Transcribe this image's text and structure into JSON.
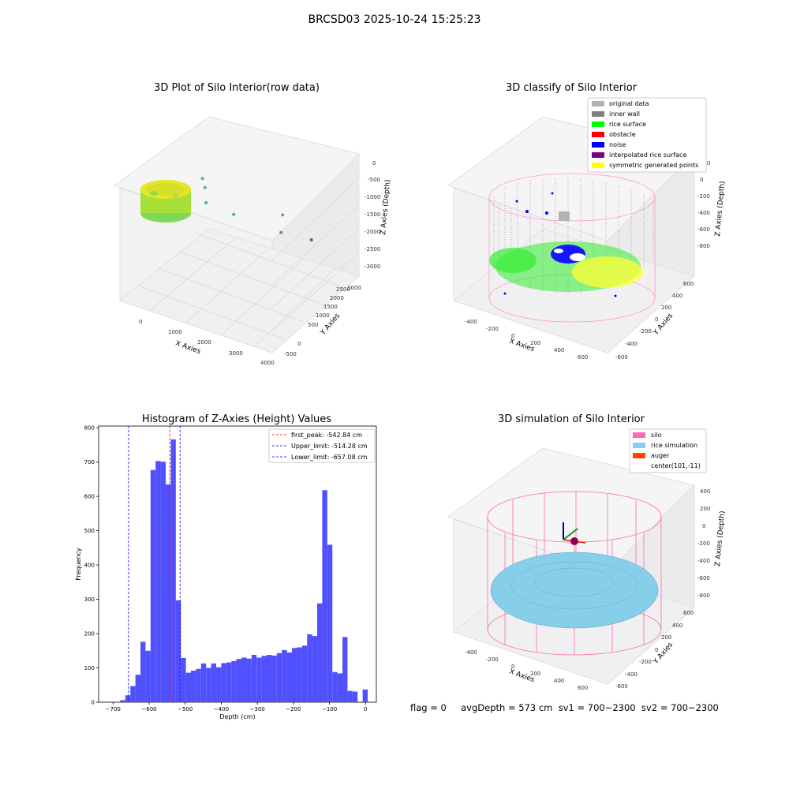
{
  "suptitle": "BRCSD03 2025-10-24 15:25:23",
  "footer": "flag = 0     avgDepth = 573 cm  sv1 = 700~2300  sv2 = 700~2300",
  "colors": {
    "original": "#b3b3b3",
    "inner_wall": "#808080",
    "rice_surface": "#00ff00",
    "obstacle": "#ff0000",
    "noise": "#0000ff",
    "interpolated": "#800080",
    "symmetric": "#ffff00",
    "silo": "#ff69b4",
    "rice_sim": "#87ceeb",
    "auger": "#ff4500",
    "hist_bar": "#5050ff"
  },
  "chart_data": [
    {
      "type": "scatter3d",
      "title": "3D Plot of Silo Interior(row data)",
      "xlabel": "X Axies",
      "ylabel": "Y Axies",
      "zlabel": "Z Axies (Depth)",
      "xticks": [
        "0",
        "1000",
        "2000",
        "3000",
        "4000"
      ],
      "yticks": [
        "-500",
        "0",
        "500",
        "1000",
        "1500",
        "2000",
        "2500",
        "3000"
      ],
      "zticks": [
        "0",
        "-500",
        "-1000",
        "-1500",
        "-2000",
        "-2500",
        "-3000"
      ],
      "outliers": [
        {
          "x": 400,
          "y": 1900,
          "z": -1900,
          "color": "#3cb89a"
        },
        {
          "x": 600,
          "y": 1700,
          "z": -2100,
          "color": "#3cb89a"
        },
        {
          "x": 900,
          "y": 1300,
          "z": -2300,
          "color": "#3cb89a"
        },
        {
          "x": 1600,
          "y": 1300,
          "z": -2600,
          "color": "#3cb89a"
        },
        {
          "x": 2500,
          "y": 1800,
          "z": -2700,
          "color": "#7b8fc0"
        },
        {
          "x": 2800,
          "y": 1300,
          "z": -2900,
          "color": "#6f7fb5"
        },
        {
          "x": 3500,
          "y": 1400,
          "z": -3000,
          "color": "#4e5fa3"
        }
      ]
    },
    {
      "type": "scatter3d",
      "title": "3D classify of Silo Interior",
      "xlabel": "X Axies",
      "ylabel": "Y Axies",
      "zlabel": "Z Axies (Depth)",
      "xticks": [
        "-400",
        "-200",
        "0",
        "200",
        "400",
        "600"
      ],
      "yticks": [
        "-600",
        "-400",
        "-200",
        "0",
        "200",
        "400",
        "600"
      ],
      "zticks": [
        "200",
        "0",
        "-200",
        "-400",
        "-600",
        "-800"
      ],
      "legend": [
        "original data",
        "inner wall",
        "rice surface",
        "obstacle",
        "noise",
        "interpolated rice surface",
        "symmetric generated points"
      ]
    },
    {
      "type": "bar",
      "title": "Histogram of Z-Axies (Height) Values",
      "xlabel": "Depth (cm)",
      "ylabel": "Frequency",
      "xlim": [
        -740,
        30
      ],
      "ylim": [
        0,
        805
      ],
      "xticks": [
        -700,
        -600,
        -500,
        -400,
        -300,
        -200,
        -100,
        0
      ],
      "yticks": [
        0,
        100,
        200,
        300,
        400,
        500,
        600,
        700,
        800
      ],
      "bin_width": 14,
      "bins": [
        {
          "x": -680,
          "v": 6
        },
        {
          "x": -666,
          "v": 20
        },
        {
          "x": -652,
          "v": 47
        },
        {
          "x": -638,
          "v": 80
        },
        {
          "x": -624,
          "v": 176
        },
        {
          "x": -610,
          "v": 150
        },
        {
          "x": -596,
          "v": 677
        },
        {
          "x": -582,
          "v": 703
        },
        {
          "x": -568,
          "v": 701
        },
        {
          "x": -554,
          "v": 635
        },
        {
          "x": -540,
          "v": 766
        },
        {
          "x": -526,
          "v": 297
        },
        {
          "x": -512,
          "v": 129
        },
        {
          "x": -498,
          "v": 86
        },
        {
          "x": -484,
          "v": 92
        },
        {
          "x": -470,
          "v": 97
        },
        {
          "x": -456,
          "v": 113
        },
        {
          "x": -442,
          "v": 100
        },
        {
          "x": -428,
          "v": 113
        },
        {
          "x": -414,
          "v": 102
        },
        {
          "x": -400,
          "v": 114
        },
        {
          "x": -386,
          "v": 116
        },
        {
          "x": -372,
          "v": 120
        },
        {
          "x": -358,
          "v": 126
        },
        {
          "x": -344,
          "v": 130
        },
        {
          "x": -330,
          "v": 127
        },
        {
          "x": -316,
          "v": 138
        },
        {
          "x": -302,
          "v": 130
        },
        {
          "x": -288,
          "v": 135
        },
        {
          "x": -274,
          "v": 138
        },
        {
          "x": -260,
          "v": 136
        },
        {
          "x": -246,
          "v": 143
        },
        {
          "x": -232,
          "v": 152
        },
        {
          "x": -218,
          "v": 145
        },
        {
          "x": -204,
          "v": 158
        },
        {
          "x": -190,
          "v": 160
        },
        {
          "x": -176,
          "v": 165
        },
        {
          "x": -162,
          "v": 198
        },
        {
          "x": -148,
          "v": 193
        },
        {
          "x": -134,
          "v": 288
        },
        {
          "x": -120,
          "v": 618
        },
        {
          "x": -106,
          "v": 459
        },
        {
          "x": -92,
          "v": 88
        },
        {
          "x": -78,
          "v": 84
        },
        {
          "x": -64,
          "v": 190
        },
        {
          "x": -50,
          "v": 33
        },
        {
          "x": -36,
          "v": 31
        },
        {
          "x": -22,
          "v": 0
        },
        {
          "x": -8,
          "v": 37
        }
      ],
      "lines": [
        {
          "label": "first_peak: -542.84 cm",
          "x": -542.84,
          "color": "#ff0000"
        },
        {
          "label": "Upper_limit: -514.28 cm",
          "x": -514.28,
          "color": "#0000ff"
        },
        {
          "label": "Lower_limit: -657.08 cm",
          "x": -657.08,
          "color": "#0000ff"
        }
      ]
    },
    {
      "type": "surface3d",
      "title": "3D simulation of Silo Interior",
      "xlabel": "X Axies",
      "ylabel": "Y Axies",
      "zlabel": "Z Axies (Depth)",
      "xticks": [
        "-400",
        "-200",
        "0",
        "200",
        "400",
        "600"
      ],
      "yticks": [
        "-600",
        "-400",
        "-200",
        "0",
        "200",
        "400",
        "600"
      ],
      "zticks": [
        "400",
        "200",
        "0",
        "-200",
        "-400",
        "-600",
        "-800"
      ],
      "legend": [
        "silo",
        "rice simulation",
        "auger",
        "center(101,-11)"
      ]
    }
  ]
}
